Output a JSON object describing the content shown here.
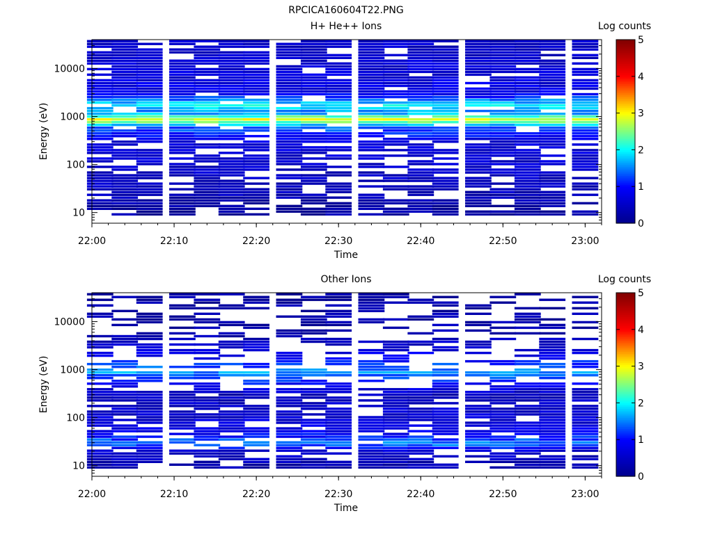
{
  "figure_title": "RPCICA160604T22.PNG",
  "colors": {
    "palette": [
      "#00008b",
      "#0000ff",
      "#00ffff",
      "#ffff00",
      "#ff0000",
      "#800000"
    ]
  },
  "chart_data": [
    {
      "type": "heatmap",
      "title": "H+ He++ Ions",
      "xlabel": "Time",
      "ylabel": "Energy (eV)",
      "x_ticks": [
        "22:00",
        "22:10",
        "22:20",
        "22:30",
        "22:40",
        "22:50",
        "23:00"
      ],
      "x_range": [
        "22:00",
        "23:02"
      ],
      "y_scale": "log",
      "y_range": [
        6,
        40000
      ],
      "y_ticks": [
        "10",
        "100",
        "1000",
        "10000"
      ],
      "colorbar": {
        "label": "Log counts",
        "range": [
          0,
          5
        ],
        "ticks": [
          "0",
          "1",
          "2",
          "3",
          "4",
          "5"
        ]
      },
      "time_bins": [
        "22:01",
        "22:04",
        "22:07",
        "22:11",
        "22:14",
        "22:17",
        "22:20",
        "22:24",
        "22:27",
        "22:30",
        "22:34",
        "22:37",
        "22:40",
        "22:43",
        "22:47",
        "22:50",
        "22:53",
        "22:56",
        "23:00"
      ],
      "energy_profile": [
        {
          "energy": 10,
          "log_counts": 0.2
        },
        {
          "energy": 20,
          "log_counts": 0.35
        },
        {
          "energy": 40,
          "log_counts": 0.45
        },
        {
          "energy": 100,
          "log_counts": 0.55
        },
        {
          "energy": 300,
          "log_counts": 0.7
        },
        {
          "energy": 600,
          "log_counts": 1.4
        },
        {
          "energy": 850,
          "log_counts": 2.9
        },
        {
          "energy": 1200,
          "log_counts": 1.5
        },
        {
          "energy": 1700,
          "log_counts": 2.0
        },
        {
          "energy": 3000,
          "log_counts": 0.8
        },
        {
          "energy": 10000,
          "log_counts": 0.6
        },
        {
          "energy": 40000,
          "log_counts": 0.5
        }
      ]
    },
    {
      "type": "heatmap",
      "title": "Other Ions",
      "xlabel": "Time",
      "ylabel": "Energy (eV)",
      "x_ticks": [
        "22:00",
        "22:10",
        "22:20",
        "22:30",
        "22:40",
        "22:50",
        "23:00"
      ],
      "x_range": [
        "22:00",
        "23:02"
      ],
      "y_scale": "log",
      "y_range": [
        6,
        40000
      ],
      "y_ticks": [
        "10",
        "100",
        "1000",
        "10000"
      ],
      "colorbar": {
        "label": "Log counts",
        "range": [
          0,
          5
        ],
        "ticks": [
          "0",
          "1",
          "2",
          "3",
          "4",
          "5"
        ]
      },
      "time_bins": [
        "22:01",
        "22:04",
        "22:07",
        "22:11",
        "22:14",
        "22:17",
        "22:20",
        "22:24",
        "22:27",
        "22:30",
        "22:34",
        "22:37",
        "22:40",
        "22:43",
        "22:47",
        "22:50",
        "22:53",
        "22:56",
        "23:00"
      ],
      "energy_profile": [
        {
          "energy": 10,
          "log_counts": 0.3
        },
        {
          "energy": 20,
          "log_counts": 0.6
        },
        {
          "energy": 28,
          "log_counts": 1.5
        },
        {
          "energy": 50,
          "log_counts": 0.8
        },
        {
          "energy": 100,
          "log_counts": 0.6
        },
        {
          "energy": 300,
          "log_counts": 0.4
        },
        {
          "energy": 850,
          "log_counts": 1.6
        },
        {
          "energy": 1700,
          "log_counts": 0.9
        },
        {
          "energy": 5000,
          "log_counts": 0.3
        },
        {
          "energy": 40000,
          "log_counts": 0.2
        }
      ]
    }
  ]
}
